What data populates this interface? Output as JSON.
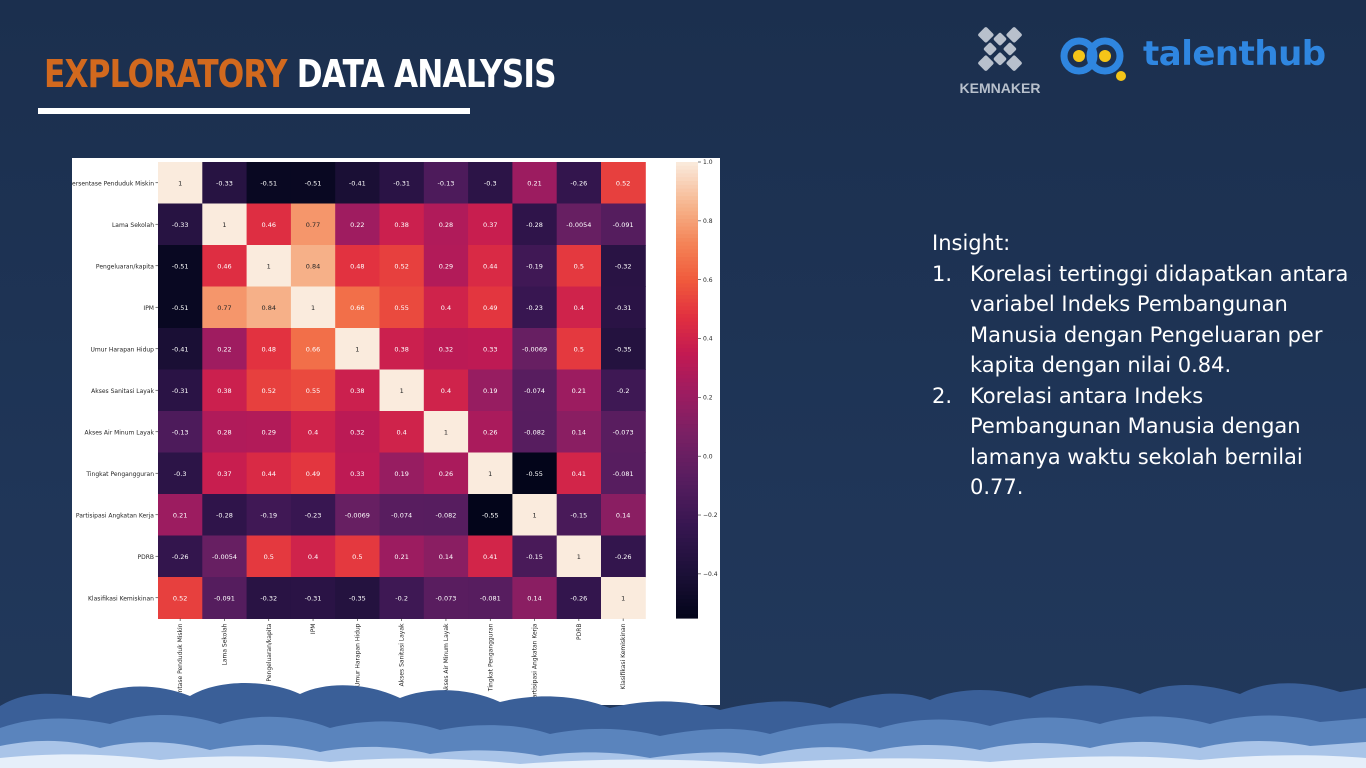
{
  "slide": {
    "title_part1": "EXPLORATORY",
    "title_part2": "DATA ANALYSIS",
    "logo_kemnaker": "KEMNAKER",
    "logo_talenthub": "talenthub"
  },
  "insight": {
    "heading": "Insight:",
    "items": [
      {
        "num": "1.",
        "text": "Korelasi tertinggi didapatkan antara variabel Indeks Pembangunan Manusia dengan Pengeluaran per kapita dengan nilai 0.84."
      },
      {
        "num": "2.",
        "text": "Korelasi antara Indeks Pembangunan Manusia dengan lamanya waktu sekolah bernilai 0.77."
      }
    ]
  },
  "chart_data": {
    "type": "heatmap",
    "labels": [
      "Persentase Penduduk Miskin",
      "Lama Sekolah",
      "Pengeluaran/kapita",
      "IPM",
      "Umur Harapan Hidup",
      "Akses Sanitasi Layak",
      "Akses Air Minum Layak",
      "Tingkat Pengangguran",
      "Partisipasi Angkatan Kerja",
      "PDRB",
      "Klasifikasi Kemiskinan"
    ],
    "matrix": [
      [
        "1",
        "-0.33",
        "-0.51",
        "-0.51",
        "-0.41",
        "-0.31",
        "-0.13",
        "-0.3",
        "0.21",
        "-0.26",
        "0.52"
      ],
      [
        "-0.33",
        "1",
        "0.46",
        "0.77",
        "0.22",
        "0.38",
        "0.28",
        "0.37",
        "-0.28",
        "-0.0054",
        "-0.091"
      ],
      [
        "-0.51",
        "0.46",
        "1",
        "0.84",
        "0.48",
        "0.52",
        "0.29",
        "0.44",
        "-0.19",
        "0.5",
        "-0.32"
      ],
      [
        "-0.51",
        "0.77",
        "0.84",
        "1",
        "0.66",
        "0.55",
        "0.4",
        "0.49",
        "-0.23",
        "0.4",
        "-0.31"
      ],
      [
        "-0.41",
        "0.22",
        "0.48",
        "0.66",
        "1",
        "0.38",
        "0.32",
        "0.33",
        "-0.0069",
        "0.5",
        "-0.35"
      ],
      [
        "-0.31",
        "0.38",
        "0.52",
        "0.55",
        "0.38",
        "1",
        "0.4",
        "0.19",
        "-0.074",
        "0.21",
        "-0.2"
      ],
      [
        "-0.13",
        "0.28",
        "0.29",
        "0.4",
        "0.32",
        "0.4",
        "1",
        "0.26",
        "-0.082",
        "0.14",
        "-0.073"
      ],
      [
        "-0.3",
        "0.37",
        "0.44",
        "0.49",
        "0.33",
        "0.19",
        "0.26",
        "1",
        "-0.55",
        "0.41",
        "-0.081"
      ],
      [
        "0.21",
        "-0.28",
        "-0.19",
        "-0.23",
        "-0.0069",
        "-0.074",
        "-0.082",
        "-0.55",
        "1",
        "-0.15",
        "0.14"
      ],
      [
        "-0.26",
        "-0.0054",
        "0.5",
        "0.4",
        "0.5",
        "0.21",
        "0.14",
        "0.41",
        "-0.15",
        "1",
        "-0.26"
      ],
      [
        "0.52",
        "-0.091",
        "-0.32",
        "-0.31",
        "-0.35",
        "-0.2",
        "-0.073",
        "-0.081",
        "0.14",
        "-0.26",
        "1"
      ]
    ],
    "vmin": -0.55,
    "vmax": 1.0,
    "colorbar_ticks": [
      "1.0",
      "0.8",
      "0.6",
      "0.4",
      "0.2",
      "0.0",
      "−0.2",
      "−0.4"
    ],
    "colorbar_tick_values": [
      1.0,
      0.8,
      0.6,
      0.4,
      0.2,
      0.0,
      -0.2,
      -0.4
    ],
    "colormap": "rocket"
  }
}
